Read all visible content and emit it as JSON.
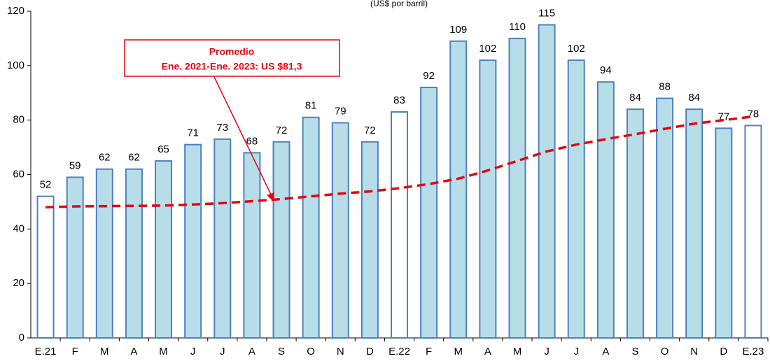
{
  "chart_data": {
    "type": "bar",
    "subtitle": "(US$ por barril)",
    "categories": [
      "E.21",
      "F",
      "M",
      "A",
      "M",
      "J",
      "J",
      "A",
      "S",
      "O",
      "N",
      "D",
      "E.22",
      "F",
      "M",
      "A",
      "M",
      "J",
      "J",
      "A",
      "S",
      "O",
      "N",
      "D",
      "E.23"
    ],
    "values": [
      52,
      59,
      62,
      62,
      65,
      71,
      73,
      68,
      72,
      81,
      79,
      72,
      83,
      92,
      109,
      102,
      110,
      115,
      102,
      94,
      84,
      88,
      84,
      77,
      78
    ],
    "colors": [
      "#ffffff",
      "#b7dde8",
      "#b7dde8",
      "#b7dde8",
      "#b7dde8",
      "#b7dde8",
      "#b7dde8",
      "#b7dde8",
      "#b7dde8",
      "#b7dde8",
      "#b7dde8",
      "#b7dde8",
      "#ffffff",
      "#b7dde8",
      "#b7dde8",
      "#b7dde8",
      "#b7dde8",
      "#b7dde8",
      "#b7dde8",
      "#b7dde8",
      "#b7dde8",
      "#b7dde8",
      "#b7dde8",
      "#b7dde8",
      "#ffffff"
    ],
    "edge_color": "#4f81bd",
    "trend_line": {
      "color": "#e30613",
      "values": [
        48,
        48.3,
        48.4,
        48.5,
        48.6,
        49,
        49.5,
        50.2,
        51,
        52,
        53,
        53.8,
        55,
        56.5,
        58.5,
        61.5,
        65,
        68.5,
        71,
        73,
        74.8,
        76.8,
        78.7,
        80,
        81.3
      ]
    },
    "annotation": {
      "title": "Promedio",
      "text": "Ene. 2021-Ene. 2023: US $81,3"
    },
    "ylim": [
      0,
      120
    ],
    "yticks": [
      0,
      20,
      40,
      60,
      80,
      100,
      120
    ],
    "grid": false
  }
}
